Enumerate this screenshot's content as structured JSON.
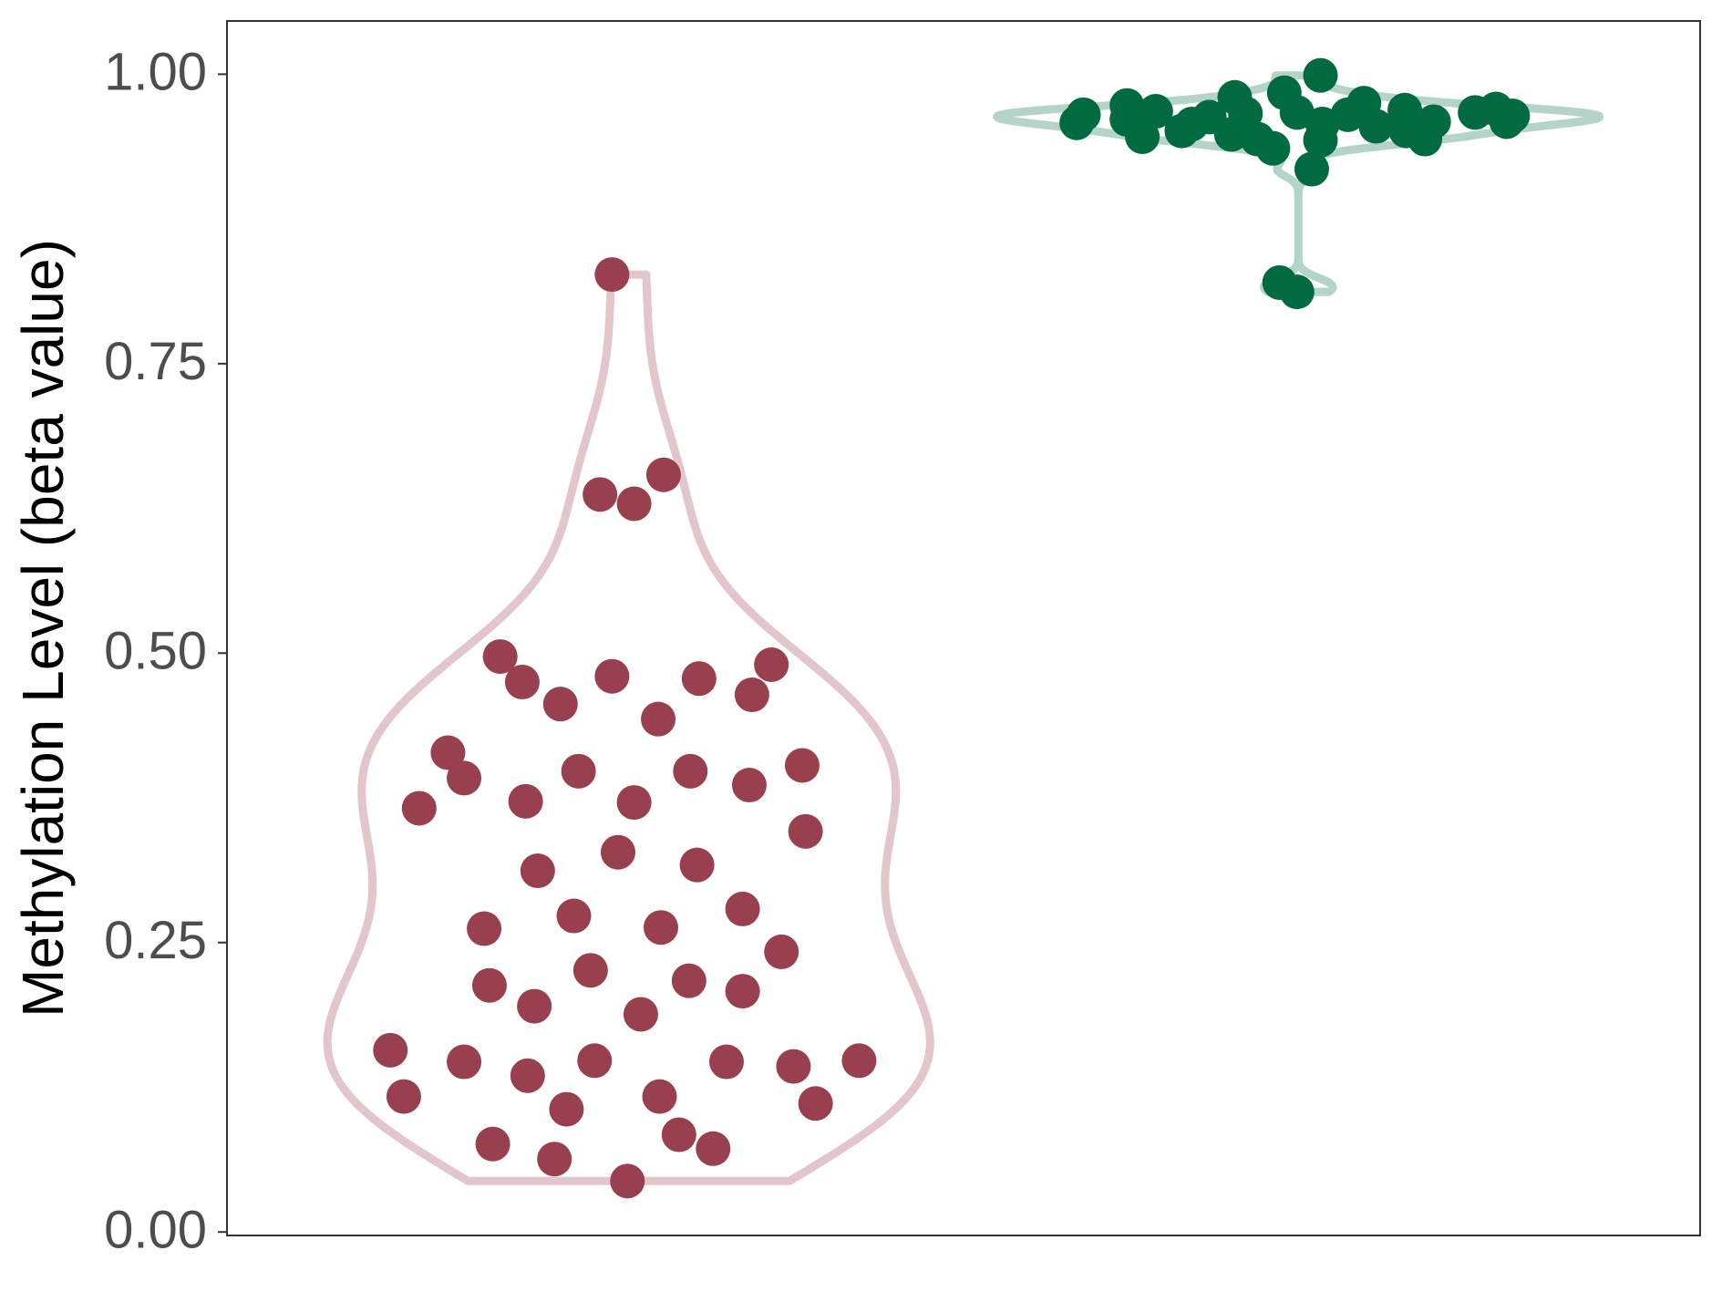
{
  "chart_data": {
    "type": "violin",
    "y_label": "Methylation Level (beta value)",
    "categories": [
      null,
      null
    ],
    "ylim": [
      -0.003,
      1.046
    ],
    "yticks": [
      {
        "value": 0,
        "label": "0.00"
      },
      {
        "value": 0.25,
        "label": "0.25"
      },
      {
        "value": 0.5,
        "label": "0.50"
      },
      {
        "value": 0.75,
        "label": "0.75"
      },
      {
        "value": 1,
        "label": "1.00"
      }
    ],
    "groups": [
      {
        "color": "#98404e",
        "outline_color": "#e2c6cc",
        "values": [
          0.827,
          0.654,
          0.637,
          0.629,
          0.497,
          0.49,
          0.48,
          0.478,
          0.475,
          0.464,
          0.456,
          0.443,
          0.414,
          0.392,
          0.403,
          0.398,
          0.398,
          0.386,
          0.372,
          0.371,
          0.366,
          0.346,
          0.328,
          0.317,
          0.312,
          0.279,
          0.273,
          0.262,
          0.263,
          0.242,
          0.226,
          0.217,
          0.213,
          0.208,
          0.195,
          0.188,
          0.157,
          0.147,
          0.148,
          0.147,
          0.148,
          0.143,
          0.135,
          0.117,
          0.117,
          0.111,
          0.106,
          0.084,
          0.076,
          0.072,
          0.063,
          0.044
        ]
      },
      {
        "color": "#006a40",
        "outline_color": "#b5d4c8",
        "values": [
          0.958,
          0.965,
          0.973,
          0.961,
          0.946,
          0.968,
          0.951,
          0.957,
          0.963,
          0.948,
          0.98,
          0.966,
          0.944,
          0.936,
          0.984,
          0.967,
          0.918,
          0.999,
          0.943,
          0.957,
          0.965,
          0.975,
          0.955,
          0.969,
          0.951,
          0.944,
          0.959,
          0.967,
          0.97,
          0.959,
          0.964,
          0.82,
          0.812
        ]
      }
    ]
  }
}
